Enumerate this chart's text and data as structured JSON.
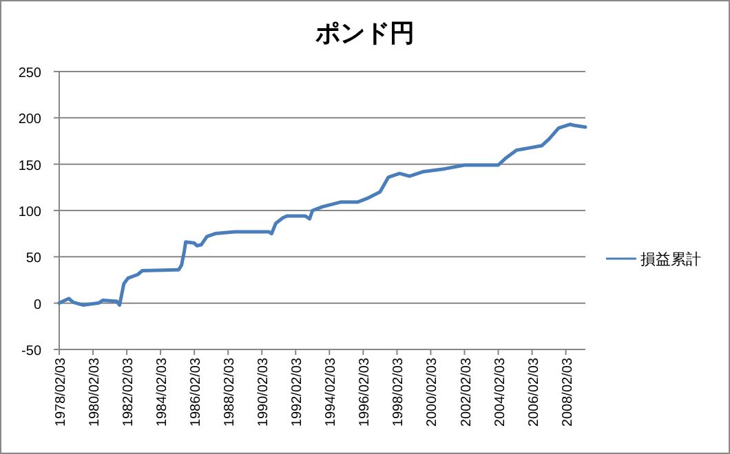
{
  "chart_data": {
    "type": "line",
    "title": "ポンド円",
    "x": [
      "1978-02-03",
      "1978-09",
      "1978-12",
      "1979-07",
      "1980-06",
      "1980-09",
      "1981-07",
      "1981-09",
      "1981-12",
      "1982-03",
      "1982-10",
      "1983-01",
      "1985-03",
      "1985-05",
      "1985-07",
      "1985-08",
      "1986-02",
      "1986-04",
      "1986-07",
      "1986-11",
      "1987-05",
      "1988-07",
      "1990-07",
      "1990-09",
      "1990-12",
      "1991-05",
      "1991-08",
      "1992-09",
      "1992-12",
      "1993-02",
      "1993-09",
      "1994-10",
      "1995-10",
      "1996-05",
      "1997-02",
      "1997-08",
      "1998-04",
      "1998-11",
      "1999-09",
      "2000-12",
      "2002-02",
      "2004-02",
      "2004-07",
      "2005-03",
      "2006-09",
      "2007-02",
      "2007-09",
      "2008-05",
      "2008-08",
      "2009-04"
    ],
    "series": [
      {
        "name": "損益累計",
        "color": "#4a7ebb",
        "values": [
          0,
          5,
          1,
          -2,
          0,
          3,
          2,
          -2,
          21,
          27,
          31,
          35,
          36,
          41,
          56,
          66,
          65,
          62,
          63,
          72,
          75,
          77,
          77,
          75,
          86,
          92,
          94,
          94,
          91,
          100,
          104,
          109,
          109,
          113,
          120,
          136,
          140,
          137,
          142,
          145,
          149,
          149,
          156,
          165,
          170,
          177,
          189,
          193,
          192,
          190
        ]
      }
    ],
    "ylim": [
      -50,
      250
    ],
    "yticks": [
      -50,
      0,
      50,
      100,
      150,
      200,
      250
    ],
    "xlim": [
      "1978-02-03",
      "2009-04"
    ],
    "xticks": [
      {
        "value": "1978-02-03",
        "label": "1978/02/03"
      },
      {
        "value": "1980-02-03",
        "label": "1980/02/03"
      },
      {
        "value": "1982-02-03",
        "label": "1982/02/03"
      },
      {
        "value": "1984-02-03",
        "label": "1984/02/03"
      },
      {
        "value": "1986-02-03",
        "label": "1986/02/03"
      },
      {
        "value": "1988-02-03",
        "label": "1988/02/03"
      },
      {
        "value": "1990-02-03",
        "label": "1990/02/03"
      },
      {
        "value": "1992-02-03",
        "label": "1992/02/03"
      },
      {
        "value": "1994-02-03",
        "label": "1994/02/03"
      },
      {
        "value": "1996-02-03",
        "label": "1996/02/03"
      },
      {
        "value": "1998-02-03",
        "label": "1998/02/03"
      },
      {
        "value": "2000-02-03",
        "label": "2000/02/03"
      },
      {
        "value": "2002-02-03",
        "label": "2002/02/03"
      },
      {
        "value": "2004-02-03",
        "label": "2004/02/03"
      },
      {
        "value": "2006-02-03",
        "label": "2006/02/03"
      },
      {
        "value": "2008-02-03",
        "label": "2008/02/03"
      }
    ],
    "grid": "y",
    "legend": "right"
  }
}
